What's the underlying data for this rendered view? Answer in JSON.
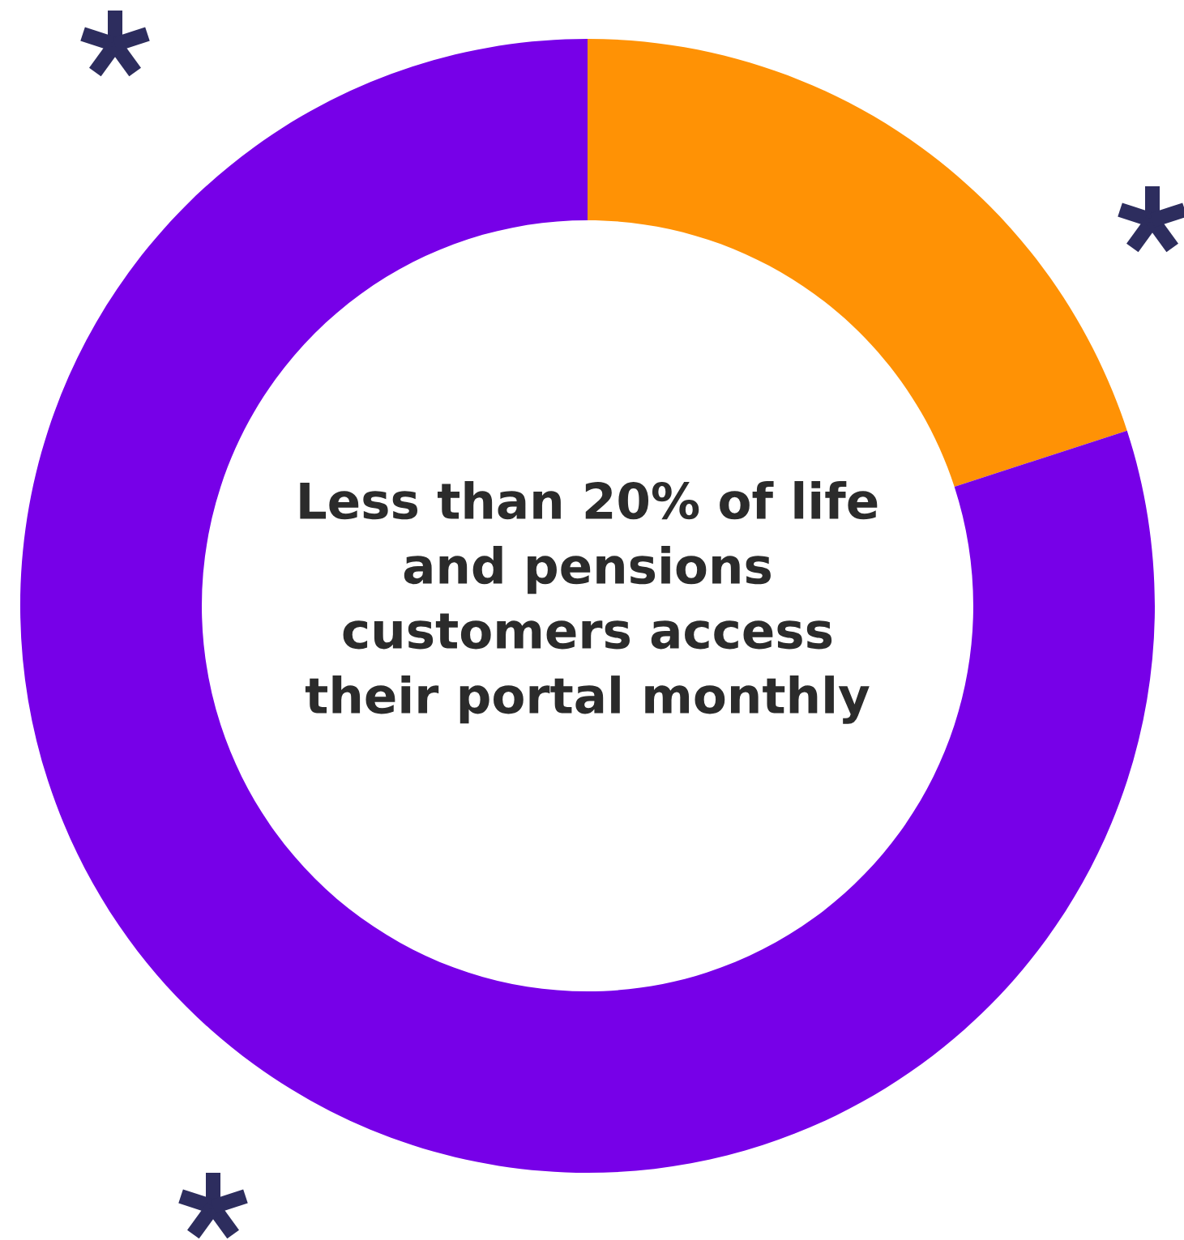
{
  "chart_data": {
    "type": "donut",
    "categories": [
      null,
      null
    ],
    "values": [
      20,
      80
    ],
    "colors": [
      "#ff9205",
      "#7700e8"
    ],
    "title": "Less than 20% of life\nand pensions\ncustomers access\ntheir portal monthly"
  }
}
